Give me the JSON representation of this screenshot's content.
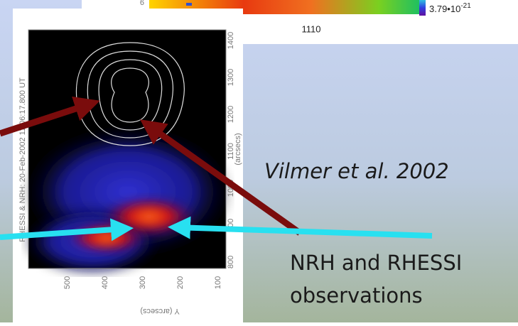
{
  "top_image": {
    "y_tick": "6",
    "x_tick": "1110",
    "colorbar_label": {
      "mantissa": "3.79•10",
      "exponent": "-21"
    }
  },
  "left_image": {
    "title": "RHESSI & NRH: 20-Feb-2002 11:06:17.800 UT",
    "right_ticks": [
      "1400",
      "1300",
      "1200",
      "1100",
      "1000",
      "900",
      "800"
    ],
    "right_label": "(arcsecs)",
    "bottom_ticks": [
      "500",
      "400",
      "300",
      "200",
      "100"
    ],
    "bottom_label": "Y (arcsecs)"
  },
  "citation": "Vilmer et al. 2002",
  "caption": [
    "NRH and RHESSI",
    "observations"
  ]
}
